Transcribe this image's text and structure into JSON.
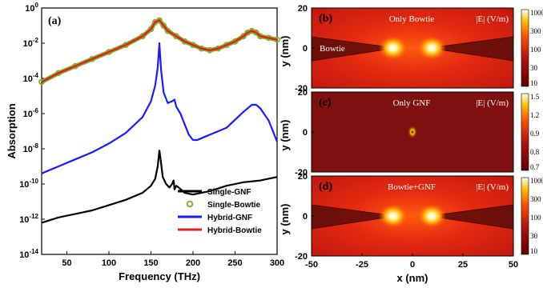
{
  "panel_a": {
    "label": "(a)",
    "ylabel": "Absorption",
    "xlabel": "Frequency (THz)",
    "xticks": [
      "50",
      "100",
      "150",
      "200",
      "250",
      "300"
    ],
    "yticks": [
      "10^0",
      "10^-2",
      "10^-4",
      "10^-6",
      "10^-8",
      "10^-10",
      "10^-12",
      "10^-14"
    ],
    "legend": [
      "Single-GNF",
      "Single-Bowtie",
      "Hybrid-GNF",
      "Hybrid-Bowtie"
    ]
  },
  "panel_b": {
    "label": "(b)",
    "title": "Only Bowtie",
    "unit": "|E| (V/m)",
    "annotation": "Bowtie",
    "cbar": [
      "1000",
      "300",
      "100",
      "30",
      "10"
    ]
  },
  "panel_c": {
    "label": "(c)",
    "title": "Only GNF",
    "unit": "|E| (V/m)",
    "cbar": [
      "1.5",
      "1.2",
      "0.9",
      "0.8",
      "0.7"
    ]
  },
  "panel_d": {
    "label": "(d)",
    "title": "Bowtie+GNF",
    "unit": "|E| (V/m)",
    "cbar": [
      "1000",
      "300",
      "100",
      "30",
      "10"
    ]
  },
  "maps": {
    "yticks": [
      "20",
      "0",
      "-20"
    ],
    "ylabel": "y (nm)",
    "xticks": [
      "-50",
      "-25",
      "0",
      "25",
      "50"
    ],
    "xlabel": "x (nm)"
  },
  "chart_data": [
    {
      "type": "line",
      "title": "",
      "xlabel": "Frequency (THz)",
      "ylabel": "Absorption",
      "xlim": [
        20,
        300
      ],
      "ylim_log10": [
        -14,
        0
      ],
      "yscale": "log",
      "legend_position": "bottom-right",
      "series": [
        {
          "name": "Single-GNF",
          "color": "#000000",
          "style": "line",
          "x": [
            20,
            40,
            60,
            80,
            100,
            120,
            140,
            150,
            155,
            158,
            160,
            162,
            164,
            168,
            172,
            175,
            177,
            178,
            180,
            183,
            190,
            200,
            210,
            220,
            240,
            260,
            280,
            300
          ],
          "y_log10": [
            -12.2,
            -11.9,
            -11.7,
            -11.5,
            -11.2,
            -10.9,
            -10.5,
            -10.1,
            -9.7,
            -9.0,
            -8.1,
            -8.8,
            -9.6,
            -10.0,
            -10.2,
            -10.0,
            -9.8,
            -10.3,
            -10.1,
            -10.2,
            -10.5,
            -10.6,
            -10.5,
            -10.4,
            -10.1,
            -9.9,
            -9.8,
            -9.6
          ]
        },
        {
          "name": "Single-Bowtie",
          "color": "#80b030",
          "style": "circles",
          "x": [
            20,
            40,
            60,
            80,
            100,
            120,
            140,
            150,
            155,
            160,
            165,
            170,
            180,
            190,
            200,
            210,
            220,
            230,
            240,
            250,
            260,
            265,
            270,
            275,
            280,
            290,
            300
          ],
          "y_log10": [
            -4.2,
            -3.7,
            -3.3,
            -2.9,
            -2.5,
            -2.1,
            -1.6,
            -1.2,
            -0.8,
            -0.7,
            -1.0,
            -1.3,
            -1.6,
            -1.9,
            -2.1,
            -2.3,
            -2.4,
            -2.3,
            -2.1,
            -1.9,
            -1.6,
            -1.4,
            -1.3,
            -1.4,
            -1.6,
            -1.7,
            -1.8
          ]
        },
        {
          "name": "Hybrid-GNF",
          "color": "#1a1aff",
          "style": "line",
          "x": [
            20,
            40,
            60,
            80,
            100,
            120,
            140,
            150,
            155,
            158,
            160,
            162,
            165,
            170,
            175,
            178,
            180,
            185,
            190,
            195,
            200,
            205,
            210,
            220,
            240,
            260,
            270,
            275,
            280,
            290,
            295,
            300
          ],
          "y_log10": [
            -9.4,
            -9.0,
            -8.6,
            -8.2,
            -7.7,
            -7.1,
            -6.2,
            -5.3,
            -4.4,
            -3.4,
            -2.0,
            -3.5,
            -4.8,
            -5.4,
            -5.3,
            -5.2,
            -5.6,
            -6.0,
            -6.6,
            -7.2,
            -7.5,
            -7.5,
            -7.4,
            -7.2,
            -6.8,
            -5.9,
            -5.5,
            -5.5,
            -5.7,
            -6.4,
            -7.0,
            -7.6
          ]
        },
        {
          "name": "Hybrid-Bowtie",
          "color": "#e02020",
          "style": "line",
          "x": [
            20,
            40,
            60,
            80,
            100,
            120,
            140,
            150,
            155,
            160,
            165,
            170,
            180,
            190,
            200,
            210,
            220,
            230,
            240,
            250,
            260,
            265,
            270,
            275,
            280,
            290,
            300
          ],
          "y_log10": [
            -4.2,
            -3.7,
            -3.3,
            -2.9,
            -2.5,
            -2.1,
            -1.6,
            -1.2,
            -0.8,
            -0.7,
            -1.0,
            -1.3,
            -1.6,
            -1.9,
            -2.1,
            -2.3,
            -2.4,
            -2.3,
            -2.1,
            -1.9,
            -1.6,
            -1.4,
            -1.3,
            -1.4,
            -1.6,
            -1.7,
            -1.8
          ]
        }
      ]
    },
    {
      "type": "heatmap",
      "title": "Only Bowtie",
      "xlabel": "x (nm)",
      "ylabel": "y (nm)",
      "xlim": [
        -50,
        50
      ],
      "ylim": [
        -20,
        20
      ],
      "colorbar_label": "|E| (V/m)",
      "colorbar_scale": "log",
      "colorbar_ticks": [
        10,
        30,
        100,
        300,
        1000
      ],
      "hotspots_x": [
        -8,
        8
      ]
    },
    {
      "type": "heatmap",
      "title": "Only GNF",
      "xlabel": "x (nm)",
      "ylabel": "y (nm)",
      "xlim": [
        -50,
        50
      ],
      "ylim": [
        -20,
        20
      ],
      "colorbar_label": "|E| (V/m)",
      "colorbar_ticks": [
        0.7,
        0.8,
        0.9,
        1.2,
        1.5
      ],
      "hotspots_x": [
        0
      ]
    },
    {
      "type": "heatmap",
      "title": "Bowtie+GNF",
      "xlabel": "x (nm)",
      "ylabel": "y (nm)",
      "xlim": [
        -50,
        50
      ],
      "ylim": [
        -20,
        20
      ],
      "colorbar_label": "|E| (V/m)",
      "colorbar_scale": "log",
      "colorbar_ticks": [
        10,
        30,
        100,
        300,
        1000
      ],
      "hotspots_x": [
        -8,
        8
      ]
    }
  ]
}
